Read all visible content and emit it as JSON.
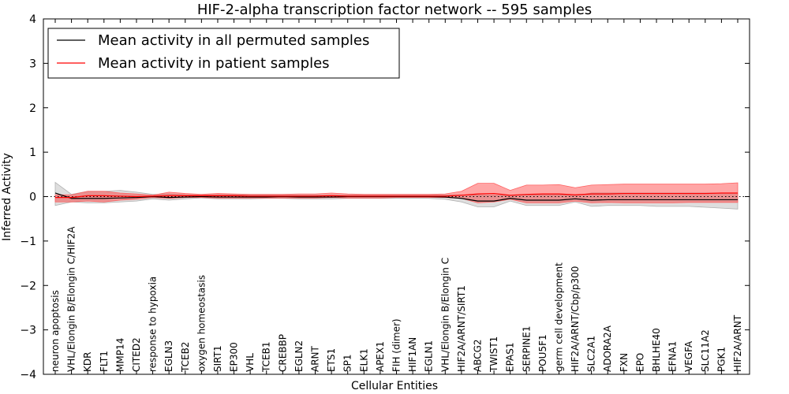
{
  "chart_data": {
    "type": "line",
    "title": "HIF-2-alpha transcription factor network -- 595 samples",
    "xlabel": "Cellular Entities",
    "ylabel": "Inferred Activity",
    "ylim": [
      -4,
      4
    ],
    "yticks": [
      -4,
      -3,
      -2,
      -1,
      0,
      1,
      2,
      3,
      4
    ],
    "ytick_labels": [
      "−4",
      "−3",
      "−2",
      "−1",
      "0",
      "1",
      "2",
      "3",
      "4"
    ],
    "legend_position": "top-left",
    "categories": [
      "neuron apoptosis",
      "VHL/Elongin B/Elongin C/HIF2A",
      "KDR",
      "FLT1",
      "MMP14",
      "CITED2",
      "response to hypoxia",
      "EGLN3",
      "TCEB2",
      "oxygen homeostasis",
      "SIRT1",
      "EP300",
      "VHL",
      "TCEB1",
      "CREBBP",
      "EGLN2",
      "ARNT",
      "ETS1",
      "SP1",
      "ELK1",
      "APEX1",
      "FIH (dimer)",
      "HIF1AN",
      "EGLN1",
      "VHL/Elongin B/Elongin C",
      "HIF2A/ARNT/SIRT1",
      "ABCG2",
      "TWIST1",
      "EPAS1",
      "SERPINE1",
      "POU5F1",
      "germ cell development",
      "HIF2A/ARNT/Cbp/p300",
      "SLC2A1",
      "ADORA2A",
      "FXN",
      "EPO",
      "BHLHE40",
      "EFNA1",
      "VEGFA",
      "SLC11A2",
      "PGK1",
      "HIF2A/ARNT"
    ],
    "series": [
      {
        "name": "Mean activity in all permuted samples",
        "color": "#000000",
        "values": [
          0.08,
          -0.04,
          -0.04,
          -0.04,
          -0.03,
          -0.02,
          0.0,
          -0.02,
          -0.01,
          0.0,
          -0.01,
          -0.01,
          -0.01,
          -0.01,
          0.0,
          -0.01,
          -0.01,
          -0.01,
          0.0,
          0.0,
          0.0,
          0.0,
          0.0,
          0.0,
          -0.01,
          -0.04,
          -0.1,
          -0.1,
          -0.04,
          -0.08,
          -0.08,
          -0.08,
          -0.05,
          -0.08,
          -0.07,
          -0.07,
          -0.07,
          -0.07,
          -0.07,
          -0.07,
          -0.07,
          -0.07,
          -0.07
        ],
        "band_lower": [
          -0.2,
          -0.12,
          -0.14,
          -0.14,
          -0.12,
          -0.1,
          -0.05,
          -0.08,
          -0.05,
          -0.03,
          -0.05,
          -0.05,
          -0.05,
          -0.04,
          -0.04,
          -0.05,
          -0.05,
          -0.05,
          -0.04,
          -0.04,
          -0.04,
          -0.04,
          -0.04,
          -0.04,
          -0.06,
          -0.12,
          -0.23,
          -0.23,
          -0.1,
          -0.2,
          -0.2,
          -0.2,
          -0.12,
          -0.22,
          -0.2,
          -0.2,
          -0.2,
          -0.22,
          -0.22,
          -0.22,
          -0.24,
          -0.26,
          -0.28
        ],
        "band_upper": [
          0.32,
          0.05,
          0.12,
          0.12,
          0.14,
          0.1,
          0.05,
          0.06,
          0.04,
          0.03,
          0.04,
          0.04,
          0.03,
          0.03,
          0.03,
          0.03,
          0.03,
          0.03,
          0.03,
          0.03,
          0.03,
          0.03,
          0.03,
          0.03,
          0.03,
          0.04,
          0.03,
          0.03,
          0.02,
          0.04,
          0.04,
          0.04,
          0.02,
          0.08,
          0.08,
          0.08,
          0.08,
          0.08,
          0.08,
          0.08,
          0.08,
          0.08,
          0.08
        ],
        "band_color": "#c8c8c8"
      },
      {
        "name": "Mean activity in patient samples",
        "color": "#ff0000",
        "values": [
          -0.02,
          -0.02,
          0.02,
          0.02,
          0.01,
          0.0,
          0.01,
          0.02,
          0.02,
          0.02,
          0.02,
          0.02,
          0.01,
          0.01,
          0.01,
          0.01,
          0.01,
          0.02,
          0.01,
          0.01,
          0.01,
          0.01,
          0.01,
          0.01,
          0.01,
          0.03,
          0.06,
          0.07,
          0.03,
          0.05,
          0.06,
          0.06,
          0.04,
          0.06,
          0.06,
          0.07,
          0.07,
          0.07,
          0.07,
          0.07,
          0.07,
          0.08,
          0.08
        ],
        "band_lower": [
          -0.12,
          -0.12,
          -0.1,
          -0.12,
          -0.08,
          -0.06,
          -0.02,
          -0.04,
          -0.02,
          -0.02,
          -0.03,
          -0.03,
          -0.03,
          -0.03,
          -0.03,
          -0.03,
          -0.03,
          -0.02,
          -0.03,
          -0.03,
          -0.03,
          -0.02,
          -0.02,
          -0.02,
          -0.02,
          -0.04,
          -0.14,
          -0.12,
          -0.06,
          -0.14,
          -0.14,
          -0.14,
          -0.1,
          -0.14,
          -0.13,
          -0.14,
          -0.14,
          -0.14,
          -0.14,
          -0.13,
          -0.13,
          -0.13,
          -0.13
        ],
        "band_upper": [
          0.04,
          0.04,
          0.12,
          0.12,
          0.08,
          0.06,
          0.03,
          0.1,
          0.07,
          0.05,
          0.07,
          0.06,
          0.05,
          0.05,
          0.05,
          0.06,
          0.06,
          0.08,
          0.06,
          0.05,
          0.05,
          0.05,
          0.05,
          0.05,
          0.06,
          0.12,
          0.3,
          0.3,
          0.14,
          0.26,
          0.26,
          0.27,
          0.2,
          0.26,
          0.27,
          0.28,
          0.28,
          0.28,
          0.28,
          0.28,
          0.28,
          0.29,
          0.31
        ],
        "band_color": "#ff0000"
      }
    ],
    "baseline": {
      "value": 0,
      "style": "dotted",
      "color": "#000000"
    }
  }
}
